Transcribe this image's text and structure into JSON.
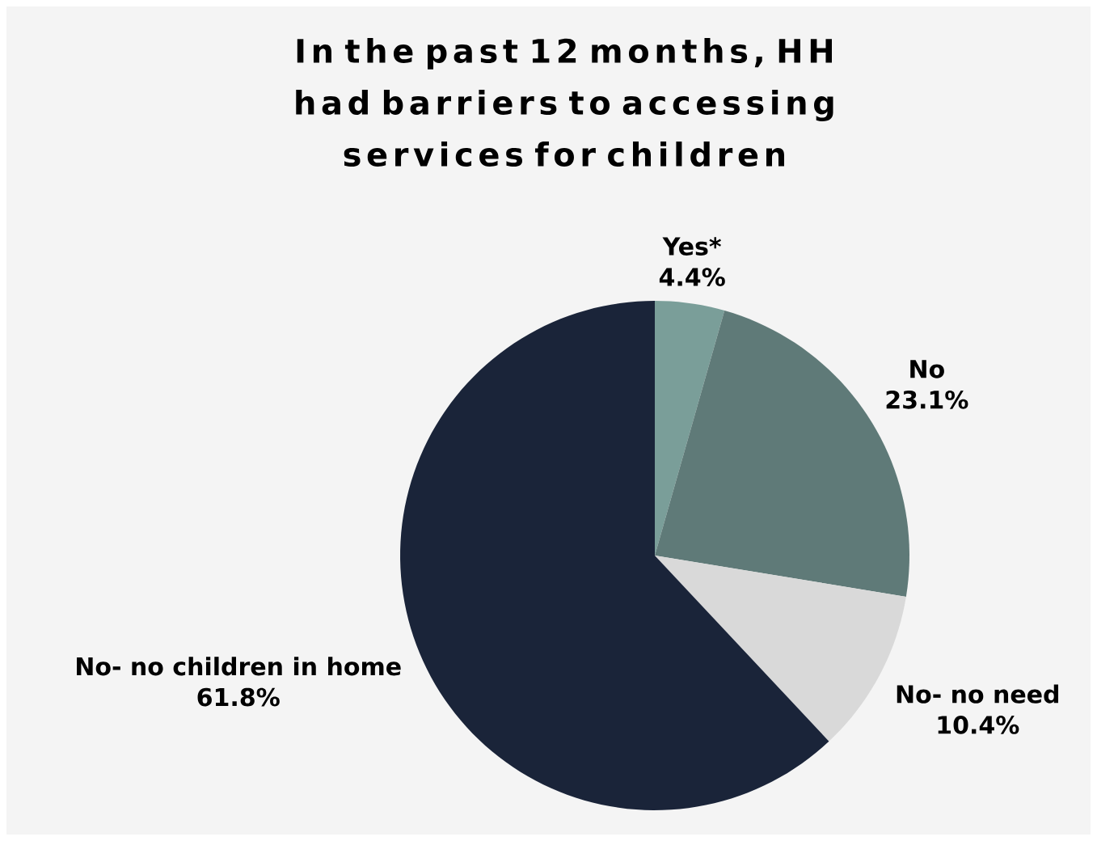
{
  "chart_data": {
    "type": "pie",
    "title": "In the past 12 months, HH had barriers to accessing services for children",
    "categories": [
      "Yes*",
      "No",
      "No- no need",
      "No- no children in home"
    ],
    "values": [
      4.4,
      23.1,
      10.4,
      61.8
    ],
    "value_labels": [
      "4.4%",
      "23.1%",
      "10.4%",
      "61.8%"
    ],
    "colors": [
      "#7a9e99",
      "#5f7a78",
      "#d9d9d9",
      "#1a2439"
    ]
  }
}
